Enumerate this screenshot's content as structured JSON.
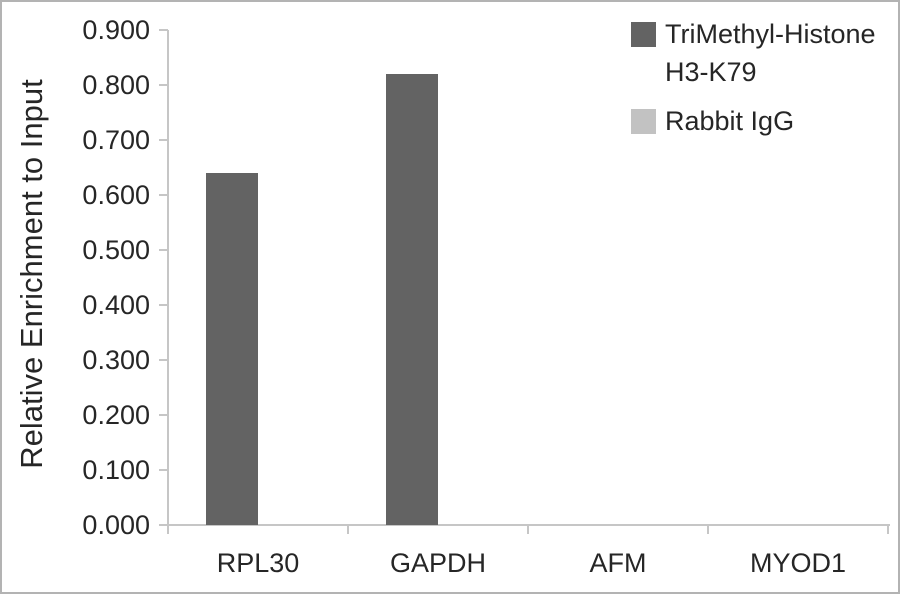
{
  "chart_data": {
    "type": "bar",
    "title": "",
    "xlabel": "",
    "ylabel": "Relative Enrichment to Input",
    "categories": [
      "RPL30",
      "GAPDH",
      "AFM",
      "MYOD1"
    ],
    "series": [
      {
        "name": "TriMethyl-Histone H3-K79",
        "color": "#636363",
        "values": [
          0.64,
          0.82,
          0,
          0
        ]
      },
      {
        "name": "Rabbit IgG",
        "color": "#c2c2c2",
        "values": [
          0,
          0,
          0,
          0
        ]
      }
    ],
    "ylim": [
      0,
      0.9
    ],
    "ytick_step": 0.1,
    "ytick_decimals": 3,
    "grid": false,
    "legend_position": "top-right",
    "colors": {
      "axis": "#c6c6c6",
      "text": "#262626",
      "frame": "#b3b3b3",
      "background": "#ffffff"
    }
  }
}
